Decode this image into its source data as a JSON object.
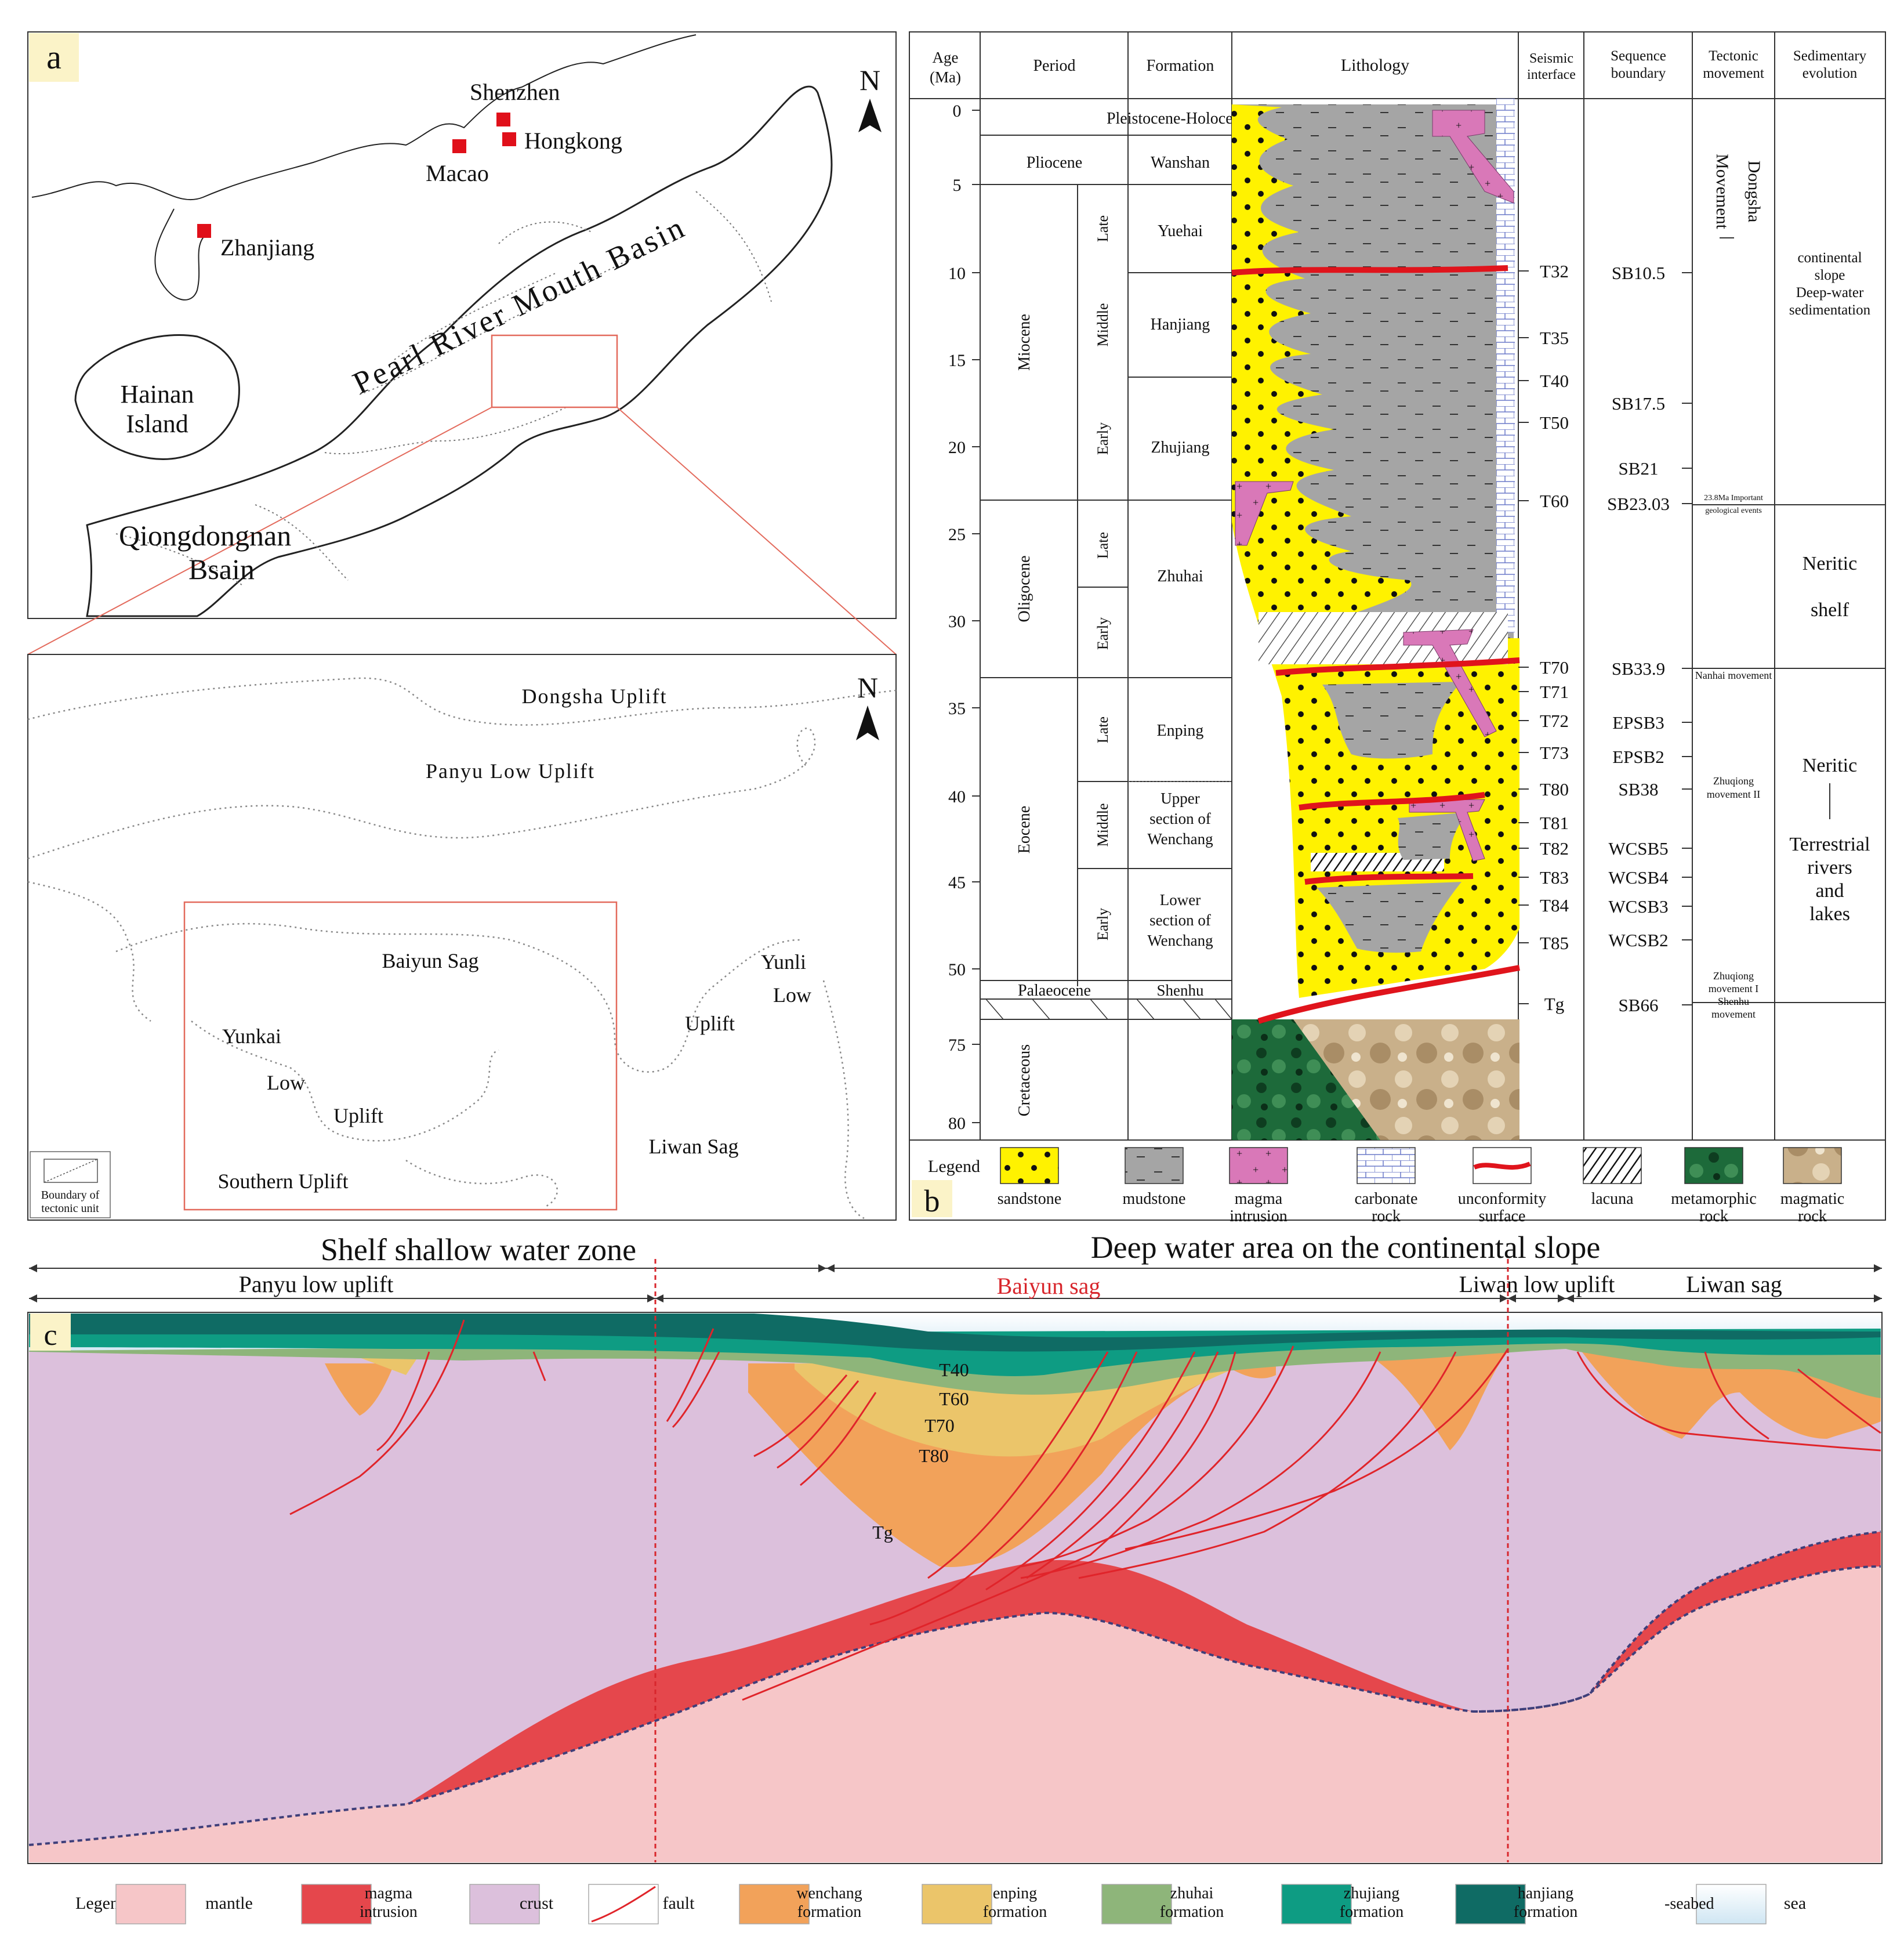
{
  "panel_a": {
    "label": "a",
    "north": "N",
    "cities": [
      "Shenzhen",
      "Hongkong",
      "Macao",
      "Zhanjiang"
    ],
    "places": {
      "hainan_1": "Hainan",
      "hainan_2": "Island",
      "basin": "Pearl River Mouth Basin",
      "qdn_1": "Qiongdongnan",
      "qdn_2": "Bsain"
    }
  },
  "panel_inset": {
    "north": "N",
    "units": {
      "dongsha": "Dongsha Uplift",
      "panyu": "Panyu Low Uplift",
      "baiyun": "Baiyun Sag",
      "yunkai": "Yunkai",
      "yunkai_low": "Low",
      "yunkai_uplift": "Uplift",
      "southern": "Southern Uplift",
      "yunli": "Yunli",
      "yunli_low": "Low",
      "yunli_uplift": "Uplift",
      "liwan": "Liwan Sag"
    },
    "legend_1": "Boundary of",
    "legend_2": "tectonic unit"
  },
  "panel_b": {
    "label": "b",
    "headers": {
      "age_1": "Age",
      "age_2": "(Ma)",
      "period": "Period",
      "formation": "Formation",
      "lithology": "Lithology",
      "seismic_1": "Seismic",
      "seismic_2": "interface",
      "seq_1": "Sequence",
      "seq_2": "boundary",
      "tect_1": "Tectonic",
      "tect_2": "movement",
      "sed_1": "Sedimentary",
      "sed_2": "evolution"
    },
    "ages": [
      "0",
      "5",
      "10",
      "15",
      "20",
      "25",
      "30",
      "35",
      "40",
      "45",
      "50",
      "75",
      "80"
    ],
    "periods": [
      "Pleistocene-Holocene",
      "Pliocene",
      "Miocene",
      "Oligocene",
      "Eocene",
      "Palaeocene",
      "Cretaceous"
    ],
    "epochs": {
      "miocene_late": "Late",
      "miocene_middle": "Middle",
      "miocene_early": "Early",
      "oligo_late": "Late",
      "oligo_early": "Early",
      "eocene_late": "Late",
      "eocene_middle": "Middle",
      "eocene_early": "Early"
    },
    "formations": {
      "wanshan": "Wanshan",
      "yuehai": "Yuehai",
      "hanjiang": "Hanjiang",
      "zhujiang": "Zhujiang",
      "zhuhai": "Zhuhai",
      "enping": "Enping",
      "upper_1": "Upper",
      "upper_2": "section of",
      "upper_3": "Wenchang",
      "lower_1": "Lower",
      "lower_2": "section of",
      "lower_3": "Wenchang",
      "shenhu": "Shenhu"
    },
    "seismic": [
      "T32",
      "T35",
      "T40",
      "T50",
      "T60",
      "T70",
      "T71",
      "T72",
      "T73",
      "T80",
      "T81",
      "T82",
      "T83",
      "T84",
      "T85",
      "Tg"
    ],
    "sequences": [
      "SB10.5",
      "SB17.5",
      "SB21",
      "SB23.03",
      "SB33.9",
      "EPSB3",
      "EPSB2",
      "SB38",
      "WCSB5",
      "WCSB4",
      "WCSB3",
      "WCSB2",
      "SB66"
    ],
    "tectonic": {
      "dongsha_1": "Dongsha",
      "dongsha_2": "Movement",
      "event_1": "23.8Ma Important",
      "event_2": "geological events",
      "nanhai": "Nanhai movement",
      "zq2_1": "Zhuqiong",
      "zq2_2": "movement II",
      "zq1_1": "Zhuqiong",
      "zq1_2": "movement I",
      "zq1_3": "Shenhu",
      "zq1_4": "movement"
    },
    "sedimentary": {
      "slope_1": "continental",
      "slope_2": "slope",
      "slope_3": "Deep-water",
      "slope_4": "sedimentation",
      "neritic_1": "Neritic",
      "neritic_2": "shelf",
      "terr_1": "Neritic",
      "terr_2": "Terrestrial",
      "terr_3": "rivers",
      "terr_4": "and",
      "terr_5": "lakes"
    },
    "legend_title": "Legend",
    "legend": [
      [
        "sandstone"
      ],
      [
        "mudstone"
      ],
      [
        "magma",
        "intrusion"
      ],
      [
        "carbonate",
        "rock"
      ],
      [
        "unconformity",
        "surface"
      ],
      [
        "lacuna"
      ],
      [
        "metamorphic",
        "rock"
      ],
      [
        "magmatic",
        "rock"
      ]
    ]
  },
  "panel_c": {
    "label": "c",
    "zones": {
      "shelf": "Shelf shallow water zone",
      "deep": "Deep water area on the continental slope"
    },
    "units": {
      "panyu": "Panyu low uplift",
      "baiyun": "Baiyun sag",
      "liwan_low": "Liwan low uplift",
      "liwan_sag": "Liwan sag"
    },
    "horizons": [
      "T40",
      "T60",
      "T70",
      "T80",
      "Tg"
    ],
    "legend_title": "Legend",
    "legend": [
      [
        "mantle"
      ],
      [
        "magma",
        "intrusion"
      ],
      [
        "crust"
      ],
      [
        "fault"
      ],
      [
        "wenchang",
        "formation"
      ],
      [
        "enping",
        "formation"
      ],
      [
        "zhuhai",
        "formation"
      ],
      [
        "zhujiang",
        "formation"
      ],
      [
        "hanjiang",
        "formation"
      ],
      [
        "sea"
      ]
    ],
    "seabed": "-seabed",
    "colors": {
      "mantle": "#f6c6c8",
      "magma": "#e5474c",
      "crust": "#dcc0dc",
      "wenchang": "#f2a25a",
      "enping": "#ebc56a",
      "zhuhai": "#8eb57a",
      "zhujiang": "#0e9c83",
      "hanjiang": "#0f6b64",
      "fault": "#e0242a"
    }
  }
}
